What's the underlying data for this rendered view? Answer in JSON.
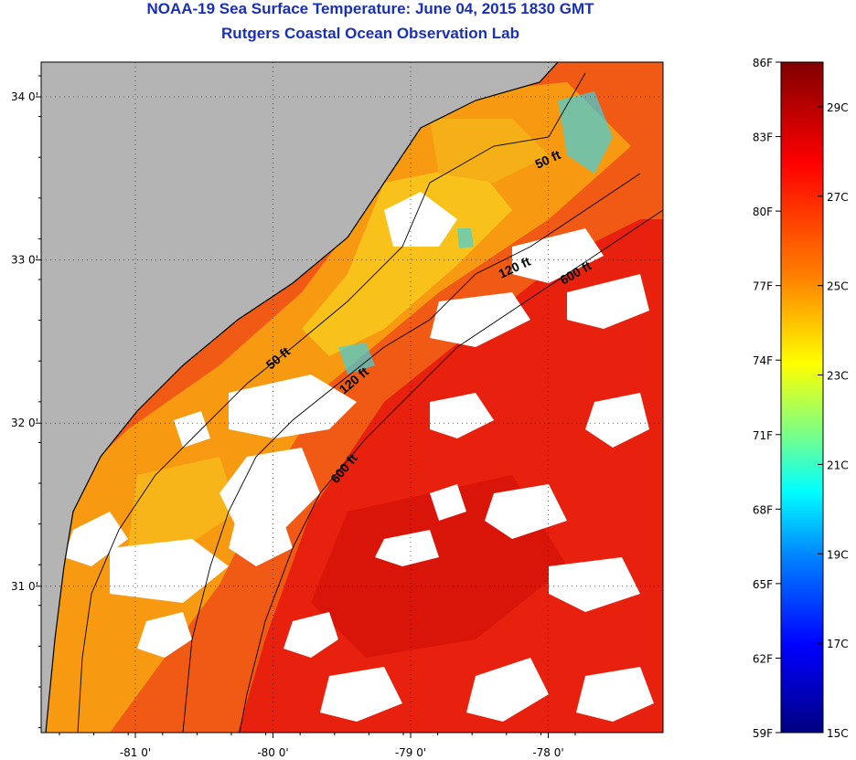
{
  "title": "NOAA-19 Sea Surface Temperature:  June 04, 2015 1830 GMT",
  "subtitle": "Rutgers Coastal Ocean Observation Lab",
  "map": {
    "lon_ticks": [
      -81,
      -80,
      -79,
      -78
    ],
    "lon_labels": [
      "-81 0'",
      "-80 0'",
      "-79 0'",
      "-78 0'"
    ],
    "lat_ticks": [
      34,
      33,
      32,
      31
    ],
    "lat_labels": [
      "34 0'",
      "33 0'",
      "32 0'",
      "31 0'"
    ],
    "land_color": "#b4b4b4",
    "cloud_color": "#ffffff",
    "contour_labels": [
      {
        "text": "50 ft"
      },
      {
        "text": "120 ft"
      },
      {
        "text": "600 ft"
      },
      {
        "text": "50 ft"
      },
      {
        "text": "120 ft"
      },
      {
        "text": "600 ft"
      }
    ]
  },
  "colorbar": {
    "fahrenheit_labels": [
      "86F",
      "83F",
      "80F",
      "77F",
      "74F",
      "71F",
      "68F",
      "65F",
      "62F",
      "59F"
    ],
    "celsius_labels": [
      "29C",
      "27C",
      "25C",
      "23C",
      "21C",
      "19C",
      "17C",
      "15C"
    ],
    "colors": [
      "#000080",
      "#0000ff",
      "#0080ff",
      "#00ffff",
      "#80ff80",
      "#ffff00",
      "#ff8000",
      "#ff0000",
      "#800000"
    ]
  }
}
